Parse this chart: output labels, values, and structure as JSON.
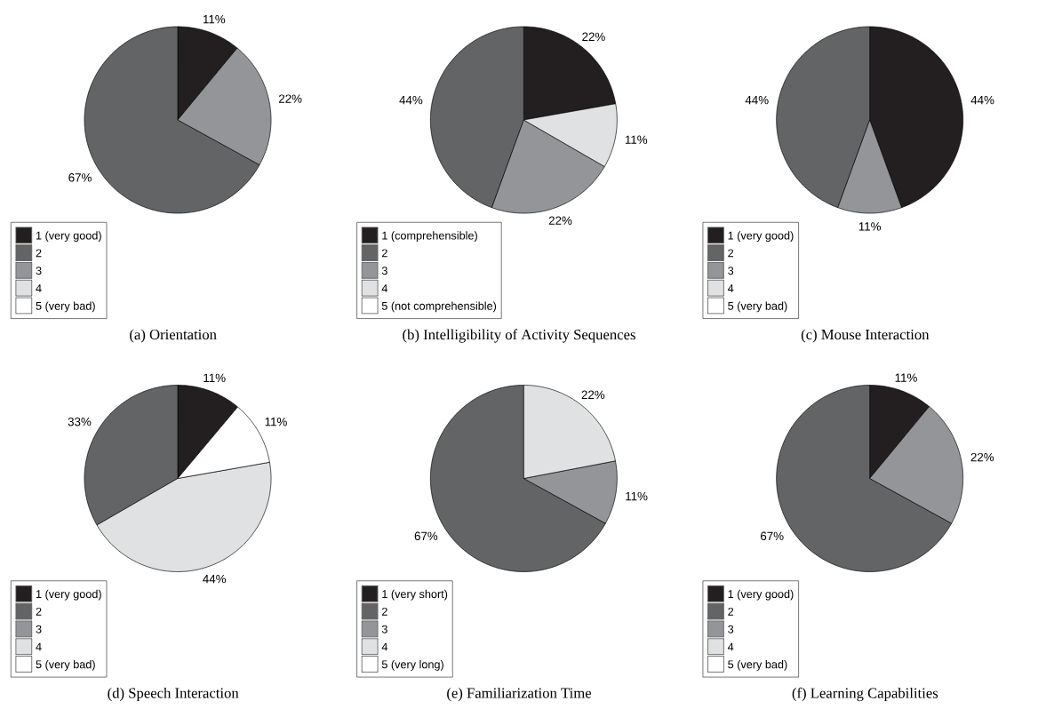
{
  "chart_data": [
    {
      "type": "pie",
      "title": "(a)  Orientation",
      "categories": [
        "1 (very good)",
        "2",
        "3",
        "4",
        "5 (very bad)"
      ],
      "values": [
        11,
        67,
        22,
        0,
        0
      ],
      "value_labels": [
        "11%",
        "67%",
        "22%",
        null,
        null
      ],
      "colors": [
        "#231f20",
        "#636466",
        "#939598",
        "#e0e1e2",
        "#ffffff"
      ],
      "legend": "bottom left"
    },
    {
      "type": "pie",
      "title": "(b)  Intelligibility of Activity Sequences",
      "categories": [
        "1 (comprehensible)",
        "2",
        "3",
        "4",
        "5 (not comprehensible)"
      ],
      "values": [
        22,
        44,
        22,
        11,
        0
      ],
      "value_labels": [
        "22%",
        "44%",
        "22%",
        "11%",
        null
      ],
      "colors": [
        "#231f20",
        "#636466",
        "#939598",
        "#e0e1e2",
        "#ffffff"
      ],
      "legend": "bottom left"
    },
    {
      "type": "pie",
      "title": "(c)  Mouse Interaction",
      "categories": [
        "1 (very good)",
        "2",
        "3",
        "4",
        "5 (very bad)"
      ],
      "values": [
        44,
        44,
        11,
        0,
        0
      ],
      "value_labels": [
        "44%",
        "44%",
        "11%",
        null,
        null
      ],
      "colors": [
        "#231f20",
        "#636466",
        "#939598",
        "#e0e1e2",
        "#ffffff"
      ],
      "legend": "bottom left"
    },
    {
      "type": "pie",
      "title": "(d)  Speech Interaction",
      "categories": [
        "1 (very good)",
        "2",
        "3",
        "4",
        "5 (very bad)"
      ],
      "values": [
        11,
        33,
        0,
        44,
        11
      ],
      "value_labels": [
        "11%",
        "33%",
        null,
        "44%",
        "11%"
      ],
      "colors": [
        "#231f20",
        "#636466",
        "#939598",
        "#e0e1e2",
        "#ffffff"
      ],
      "legend": "bottom left"
    },
    {
      "type": "pie",
      "title": "(e)  Familiarization Time",
      "categories": [
        "1 (very short)",
        "2",
        "3",
        "4",
        "5 (very long)"
      ],
      "values": [
        0,
        67,
        11,
        22,
        0
      ],
      "value_labels": [
        null,
        "67%",
        "11%",
        "22%",
        null
      ],
      "colors": [
        "#231f20",
        "#636466",
        "#939598",
        "#e0e1e2",
        "#ffffff"
      ],
      "legend": "bottom left"
    },
    {
      "type": "pie",
      "title": "(f)  Learning Capabilities",
      "categories": [
        "1 (very good)",
        "2",
        "3",
        "4",
        "5 (very bad)"
      ],
      "values": [
        11,
        67,
        22,
        0,
        0
      ],
      "value_labels": [
        "11%",
        "67%",
        "22%",
        null,
        null
      ],
      "colors": [
        "#231f20",
        "#636466",
        "#939598",
        "#e0e1e2",
        "#ffffff"
      ],
      "legend": "bottom left"
    }
  ]
}
